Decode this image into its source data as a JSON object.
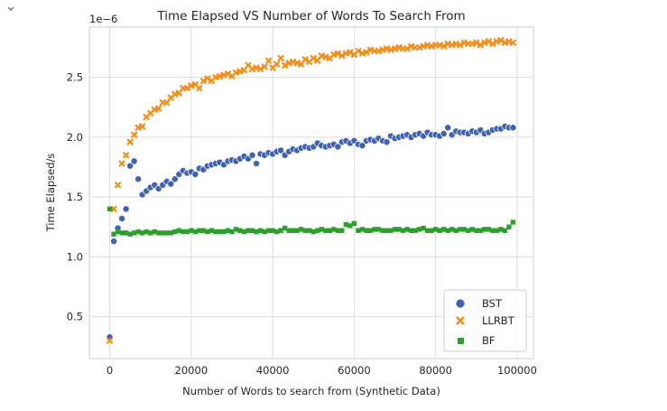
{
  "ui": {
    "collapse_icon": "chevron-down-icon"
  },
  "chart_data": {
    "type": "scatter",
    "title": "Time Elapsed VS Number of Words To Search From",
    "xlabel": "Number of Words to search from (Synthetic Data)",
    "ylabel": "Time Elapsed/s",
    "y_offset_text": "1e−6",
    "xlim": [
      -5000,
      104000
    ],
    "ylim": [
      0.15,
      2.92
    ],
    "x_ticks": [
      0,
      20000,
      40000,
      60000,
      80000,
      100000
    ],
    "x_tick_labels": [
      "0",
      "20000",
      "40000",
      "60000",
      "80000",
      "100000"
    ],
    "y_ticks": [
      0.5,
      1.0,
      1.5,
      2.0,
      2.5
    ],
    "y_tick_labels": [
      "0.5",
      "1.0",
      "1.5",
      "2.0",
      "2.5"
    ],
    "grid": true,
    "legend_position": "lower-right",
    "x": [
      0,
      1000,
      2000,
      3000,
      4000,
      5000,
      6000,
      7000,
      8000,
      9000,
      10000,
      11000,
      12000,
      13000,
      14000,
      15000,
      16000,
      17000,
      18000,
      19000,
      20000,
      21000,
      22000,
      23000,
      24000,
      25000,
      26000,
      27000,
      28000,
      29000,
      30000,
      31000,
      32000,
      33000,
      34000,
      35000,
      36000,
      37000,
      38000,
      39000,
      40000,
      41000,
      42000,
      43000,
      44000,
      45000,
      46000,
      47000,
      48000,
      49000,
      50000,
      51000,
      52000,
      53000,
      54000,
      55000,
      56000,
      57000,
      58000,
      59000,
      60000,
      61000,
      62000,
      63000,
      64000,
      65000,
      66000,
      67000,
      68000,
      69000,
      70000,
      71000,
      72000,
      73000,
      74000,
      75000,
      76000,
      77000,
      78000,
      79000,
      80000,
      81000,
      82000,
      83000,
      84000,
      85000,
      86000,
      87000,
      88000,
      89000,
      90000,
      91000,
      92000,
      93000,
      94000,
      95000,
      96000,
      97000,
      98000,
      99000
    ],
    "series": [
      {
        "name": "BST",
        "marker": "circle",
        "color": "#4063b0",
        "values": [
          0.33,
          1.13,
          1.24,
          1.32,
          1.4,
          1.76,
          1.8,
          1.65,
          1.52,
          1.55,
          1.58,
          1.6,
          1.57,
          1.6,
          1.63,
          1.61,
          1.65,
          1.69,
          1.72,
          1.7,
          1.71,
          1.69,
          1.74,
          1.73,
          1.76,
          1.77,
          1.78,
          1.79,
          1.77,
          1.8,
          1.81,
          1.8,
          1.82,
          1.84,
          1.82,
          1.85,
          1.78,
          1.86,
          1.85,
          1.87,
          1.86,
          1.88,
          1.89,
          1.85,
          1.88,
          1.9,
          1.89,
          1.91,
          1.92,
          1.91,
          1.92,
          1.95,
          1.93,
          1.92,
          1.93,
          1.94,
          1.92,
          1.96,
          1.97,
          1.95,
          1.97,
          1.94,
          1.93,
          1.97,
          1.98,
          1.97,
          1.99,
          1.97,
          1.96,
          2.01,
          1.99,
          2.0,
          2.01,
          2.02,
          2.0,
          2.02,
          2.03,
          2.01,
          2.04,
          2.02,
          2.02,
          2.01,
          2.03,
          2.08,
          2.02,
          2.05,
          2.04,
          2.04,
          2.03,
          2.05,
          2.04,
          2.06,
          2.03,
          2.04,
          2.06,
          2.07,
          2.07,
          2.09,
          2.08,
          2.08
        ]
      },
      {
        "name": "LLRBT",
        "marker": "x",
        "color": "#f28e1c",
        "values": [
          0.3,
          1.4,
          1.6,
          1.78,
          1.85,
          1.96,
          2.02,
          2.08,
          2.09,
          2.17,
          2.2,
          2.23,
          2.24,
          2.29,
          2.29,
          2.33,
          2.36,
          2.37,
          2.41,
          2.41,
          2.43,
          2.44,
          2.41,
          2.47,
          2.49,
          2.47,
          2.5,
          2.51,
          2.52,
          2.53,
          2.51,
          2.54,
          2.55,
          2.56,
          2.6,
          2.57,
          2.58,
          2.57,
          2.59,
          2.64,
          2.58,
          2.61,
          2.66,
          2.6,
          2.62,
          2.63,
          2.62,
          2.61,
          2.65,
          2.63,
          2.66,
          2.64,
          2.68,
          2.67,
          2.66,
          2.69,
          2.7,
          2.68,
          2.7,
          2.71,
          2.69,
          2.72,
          2.7,
          2.71,
          2.73,
          2.72,
          2.72,
          2.73,
          2.74,
          2.73,
          2.74,
          2.75,
          2.74,
          2.74,
          2.76,
          2.75,
          2.75,
          2.76,
          2.77,
          2.76,
          2.77,
          2.77,
          2.76,
          2.78,
          2.77,
          2.78,
          2.77,
          2.79,
          2.78,
          2.78,
          2.79,
          2.77,
          2.79,
          2.8,
          2.78,
          2.8,
          2.81,
          2.79,
          2.8,
          2.79
        ]
      },
      {
        "name": "BF",
        "marker": "square",
        "color": "#2ca02c",
        "values": [
          1.4,
          1.19,
          1.21,
          1.2,
          1.2,
          1.19,
          1.2,
          1.21,
          1.2,
          1.21,
          1.2,
          1.21,
          1.2,
          1.2,
          1.2,
          1.2,
          1.21,
          1.22,
          1.21,
          1.21,
          1.22,
          1.21,
          1.22,
          1.22,
          1.21,
          1.22,
          1.21,
          1.21,
          1.21,
          1.22,
          1.21,
          1.23,
          1.22,
          1.21,
          1.22,
          1.22,
          1.21,
          1.22,
          1.21,
          1.22,
          1.22,
          1.21,
          1.22,
          1.24,
          1.22,
          1.22,
          1.22,
          1.23,
          1.22,
          1.22,
          1.21,
          1.22,
          1.23,
          1.22,
          1.22,
          1.23,
          1.22,
          1.22,
          1.27,
          1.26,
          1.28,
          1.22,
          1.23,
          1.22,
          1.22,
          1.23,
          1.23,
          1.22,
          1.22,
          1.22,
          1.23,
          1.23,
          1.22,
          1.23,
          1.22,
          1.22,
          1.23,
          1.24,
          1.22,
          1.22,
          1.23,
          1.22,
          1.23,
          1.22,
          1.23,
          1.22,
          1.23,
          1.23,
          1.22,
          1.23,
          1.22,
          1.22,
          1.23,
          1.23,
          1.22,
          1.22,
          1.23,
          1.22,
          1.25,
          1.29
        ]
      }
    ]
  }
}
